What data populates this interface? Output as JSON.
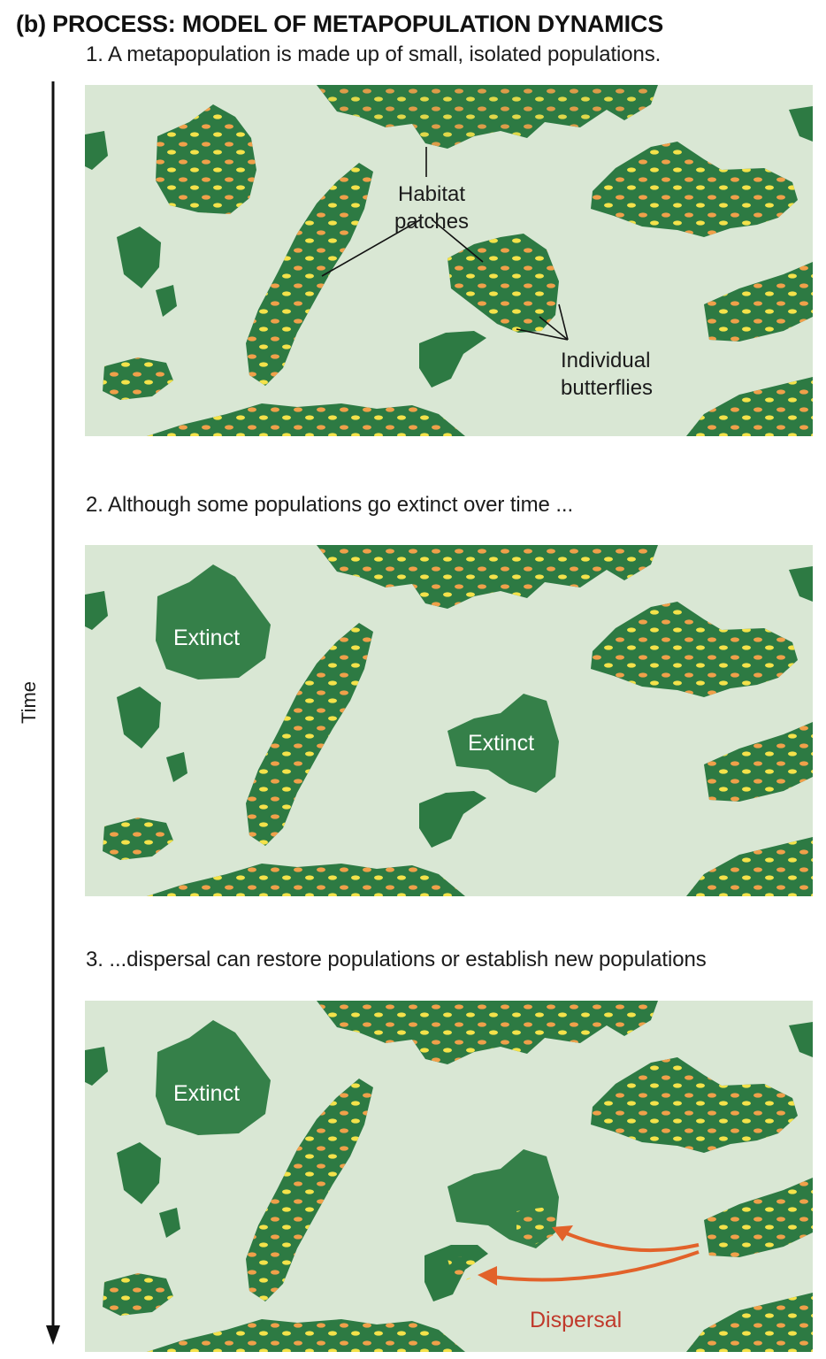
{
  "heading": "(b) PROCESS: MODEL OF METAPOPULATION DYNAMICS",
  "steps": [
    "1. A metapopulation is made up of small, isolated populations.",
    "2. Although some populations go extinct over time ...",
    "3. ...dispersal can restore populations or establish new populations"
  ],
  "time_label": "Time",
  "labels": {
    "habitat_patches": [
      "Habitat",
      "patches"
    ],
    "individual_butterflies": [
      "Individual",
      "butterflies"
    ],
    "extinct": "Extinct",
    "dispersal": "Dispersal"
  },
  "colors": {
    "background": "#d9e7d4",
    "patch": "#2d7a43",
    "patch_empty": "#358049",
    "butterfly_orange": "#f0a04a",
    "butterfly_yellow": "#f4e24a",
    "arrow": "#e2622a",
    "dispersal_text": "#c0392b"
  }
}
